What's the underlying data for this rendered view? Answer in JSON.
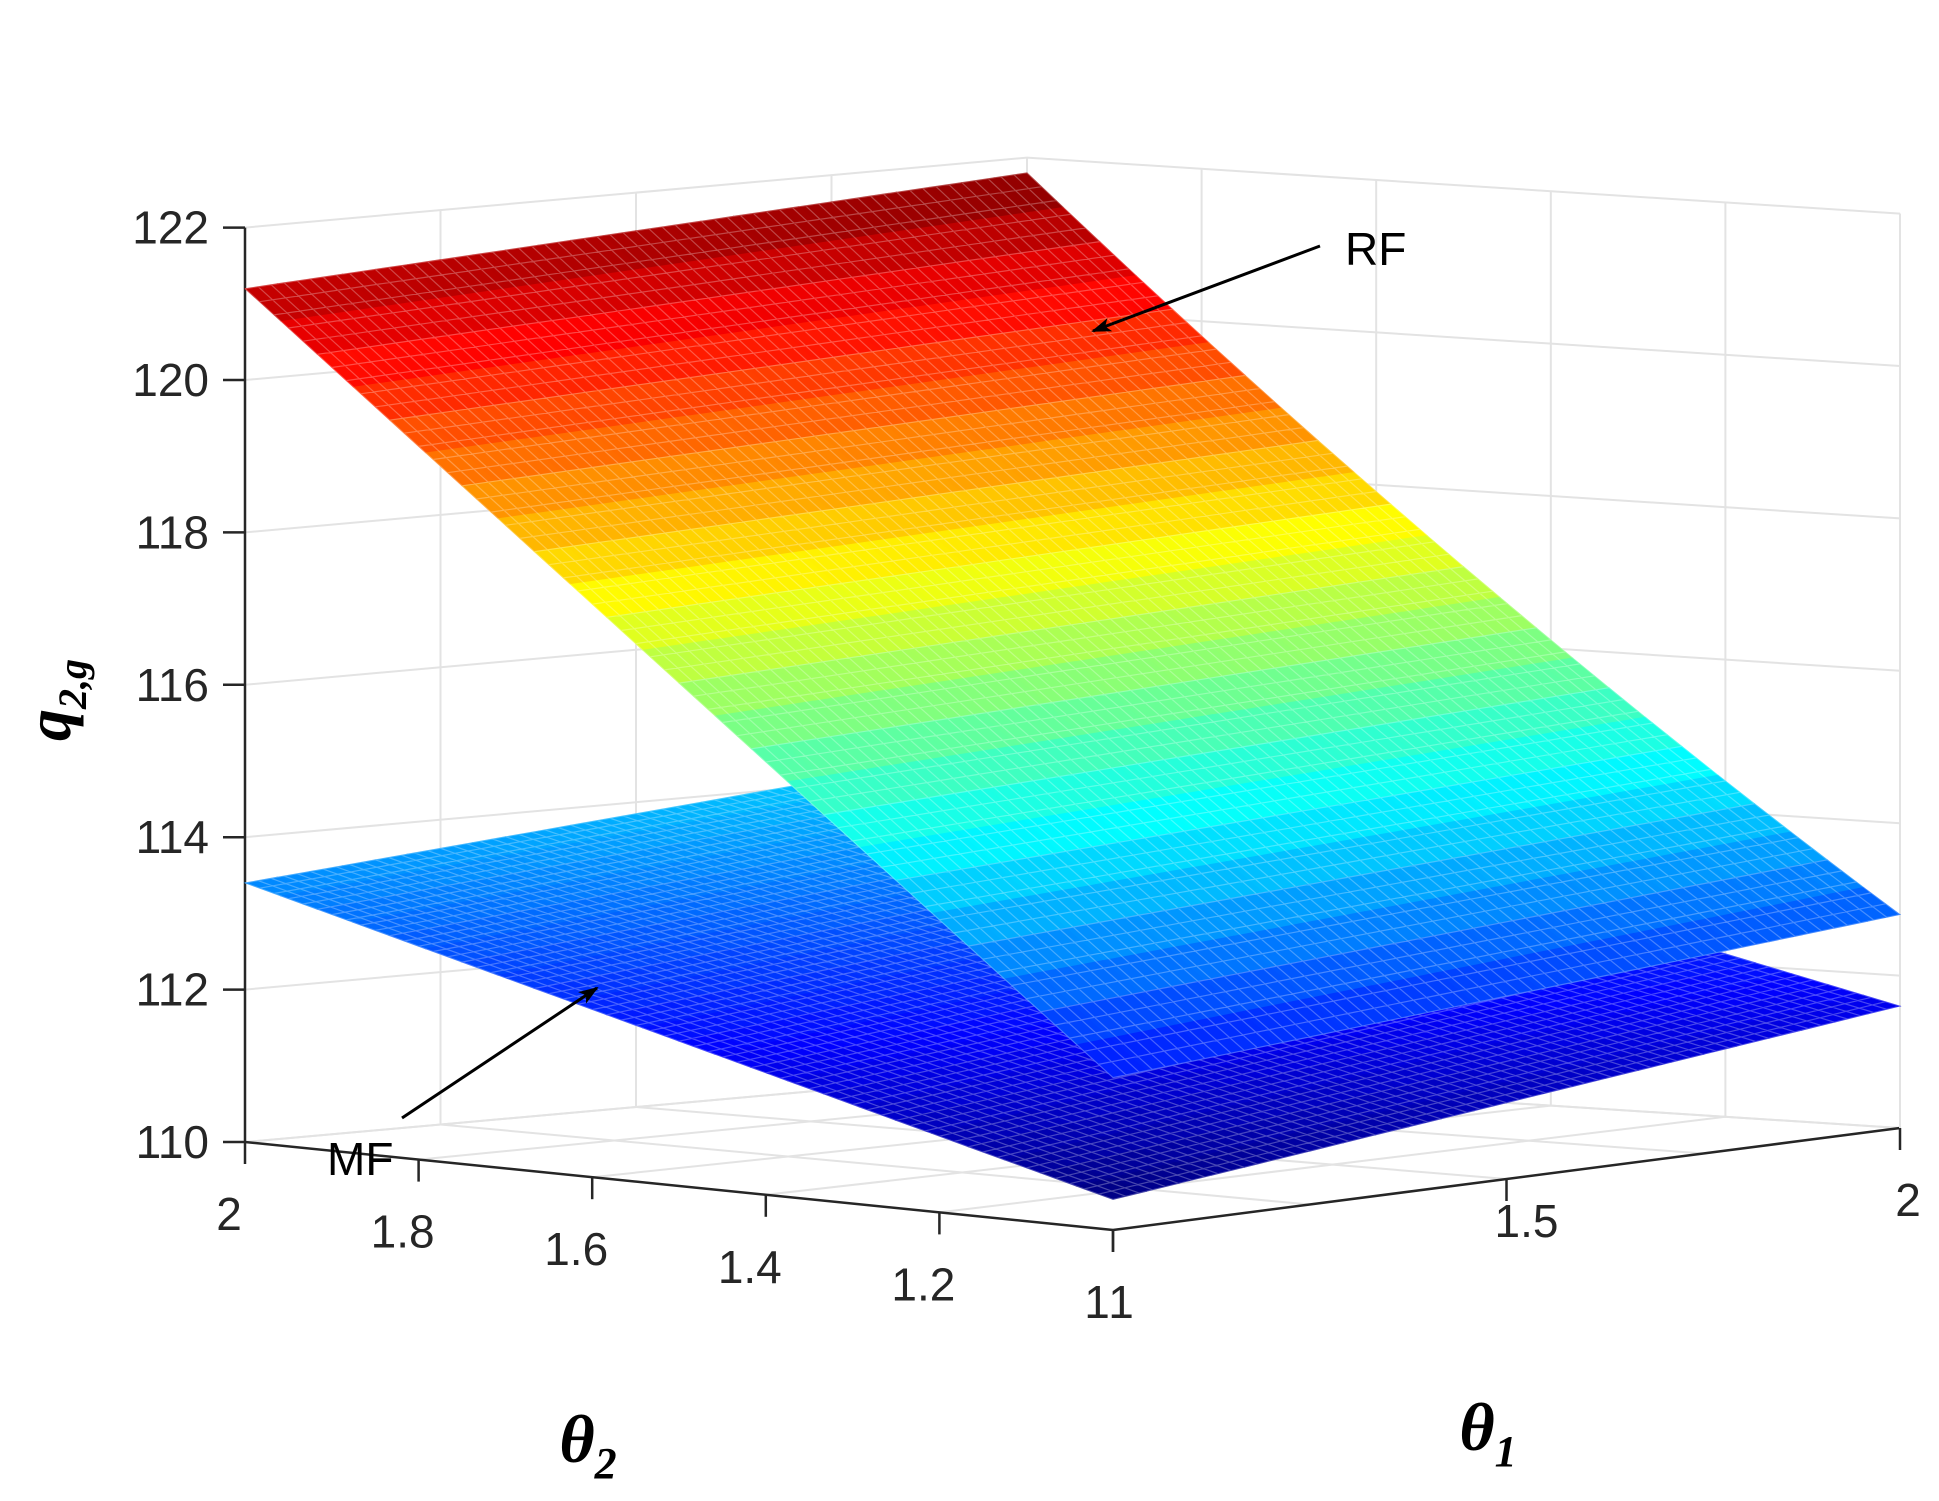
{
  "colors": {
    "background": "#ffffff",
    "grid": "#e3e3e3",
    "axis": "#262626",
    "colormap": "jet"
  },
  "chart_data": {
    "type": "surface3d",
    "zlabel": "q",
    "zlabel_sub": "2,g",
    "xlabel": "θ",
    "xlabel_sub": "1",
    "ylabel": "θ",
    "ylabel_sub": "2",
    "zlim": [
      110,
      122
    ],
    "xlim": [
      1,
      2
    ],
    "ylim": [
      1,
      2
    ],
    "grid": true,
    "z_ticks": [
      "110",
      "112",
      "114",
      "116",
      "118",
      "120",
      "122"
    ],
    "x_ticks": [
      "1",
      "1.5",
      "2"
    ],
    "y_ticks": [
      "2",
      "1.8",
      "1.6",
      "1.4",
      "1.2",
      "1"
    ],
    "series": [
      {
        "name": "RF",
        "corners": [
          {
            "theta1": 1,
            "theta2": 1,
            "value": 112.0
          },
          {
            "theta1": 2,
            "theta2": 1,
            "value": 112.8
          },
          {
            "theta1": 2,
            "theta2": 2,
            "value": 121.8
          },
          {
            "theta1": 1,
            "theta2": 2,
            "value": 121.2
          }
        ]
      },
      {
        "name": "MF",
        "corners": [
          {
            "theta1": 1,
            "theta2": 1,
            "value": 110.4
          },
          {
            "theta1": 2,
            "theta2": 1,
            "value": 111.6
          },
          {
            "theta1": 2,
            "theta2": 2,
            "value": 114.3
          },
          {
            "theta1": 1,
            "theta2": 2,
            "value": 113.4
          }
        ]
      }
    ],
    "annotations": [
      {
        "text": "RF",
        "series": "RF"
      },
      {
        "text": "MF",
        "series": "MF"
      }
    ]
  }
}
